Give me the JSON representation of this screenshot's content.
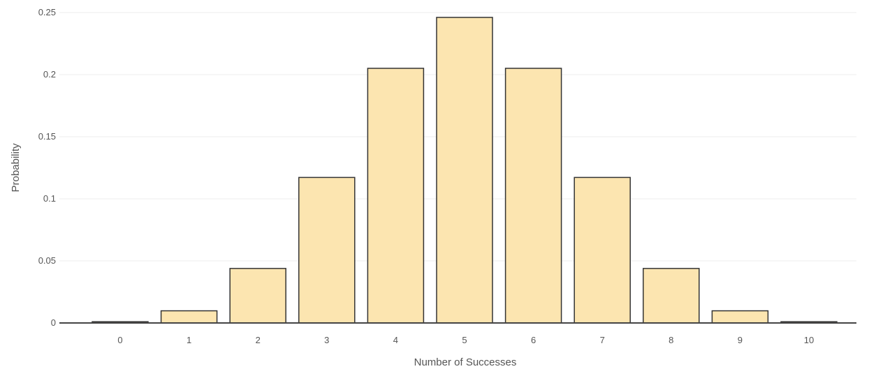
{
  "chart_data": {
    "type": "bar",
    "title": "",
    "xlabel": "Number of Successes",
    "ylabel": "Probability",
    "categories": [
      "0",
      "1",
      "2",
      "3",
      "4",
      "5",
      "6",
      "7",
      "8",
      "9",
      "10"
    ],
    "values": [
      0.001,
      0.0098,
      0.0439,
      0.1172,
      0.2051,
      0.2461,
      0.2051,
      0.1172,
      0.0439,
      0.0098,
      0.001
    ],
    "ylim": [
      0,
      0.25
    ],
    "yticks": [
      0,
      0.05,
      0.1,
      0.15,
      0.2,
      0.25
    ],
    "ytick_labels": [
      "0",
      "0.05",
      "0.1",
      "0.15",
      "0.2",
      "0.25"
    ],
    "grid": true,
    "legend": false,
    "colors": {
      "bar_fill": "#fce5b0",
      "bar_stroke": "#333333",
      "grid": "#eeeeee",
      "axis_text": "#555555"
    }
  }
}
